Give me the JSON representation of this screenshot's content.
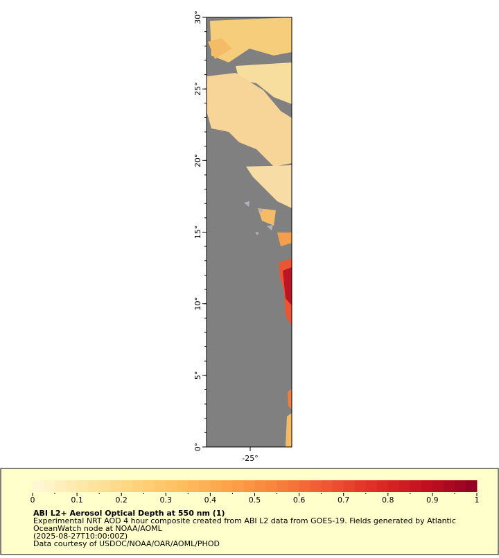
{
  "map": {
    "lat_range": [
      0,
      30
    ],
    "lon_range": [
      -26.05,
      -24.0
    ],
    "lat_ticks": [
      {
        "value": 0,
        "label": "0°"
      },
      {
        "value": 5,
        "label": "5°"
      },
      {
        "value": 10,
        "label": "10°"
      },
      {
        "value": 15,
        "label": "15°"
      },
      {
        "value": 20,
        "label": "20°"
      },
      {
        "value": 25,
        "label": "25°"
      },
      {
        "value": 30,
        "label": "30°"
      }
    ],
    "lon_ticks": [
      {
        "value": -25,
        "label": "-25°"
      }
    ]
  },
  "colorbar": {
    "range": [
      0,
      1
    ],
    "ticks": [
      0,
      0.1,
      0.2,
      0.3,
      0.4,
      0.5,
      0.6,
      0.7,
      0.8,
      0.9,
      1
    ],
    "colors": [
      "#fff8d8",
      "#fee8a8",
      "#fed57f",
      "#fdbf60",
      "#fca14a",
      "#f97f3c",
      "#f05432",
      "#dd2a26",
      "#c0101f",
      "#8f0026"
    ]
  },
  "legend": {
    "title": "ABI L2+ Aerosol Optical Depth at 550 nm (1)",
    "lines": [
      "Experimental NRT AOD 4 hour composite created from ABI L2 data from GOES-19. Fields generated by Atlantic",
      "OceanWatch node at NOAA/AOML",
      "(2025-08-27T10:00:00Z)",
      "Data courtesy of USDOC/NOAA/OAR/AOML/PHOD"
    ]
  }
}
